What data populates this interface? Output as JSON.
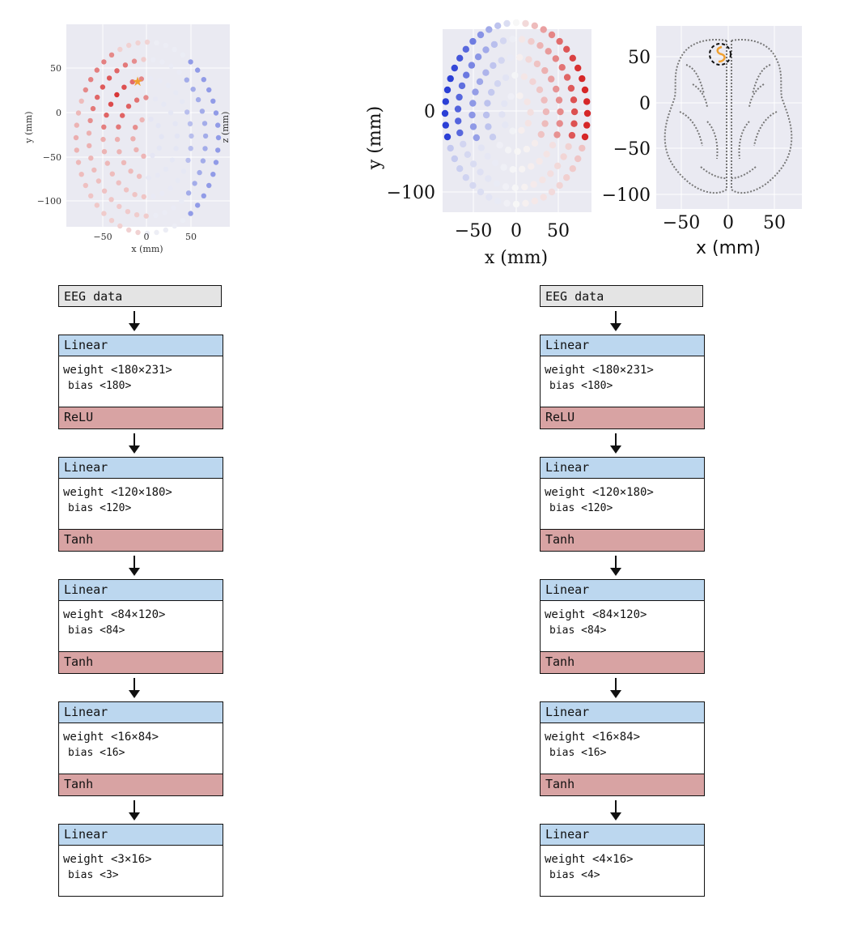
{
  "plots": {
    "plot1": {
      "ylabel": "y (mm)",
      "xlabel": "x (mm)",
      "zlabel": "z (mm)",
      "yticks": [
        "50",
        "0",
        "−50",
        "−100"
      ],
      "xticks": [
        "−50",
        "0",
        "50"
      ]
    },
    "plot2": {
      "ylabel": "y (mm)",
      "xlabel": "x (mm)",
      "yticks": [
        "0",
        "−100"
      ],
      "xticks": [
        "−50",
        "0",
        "50"
      ]
    },
    "plot3": {
      "xlabel": "x (mm)",
      "yticks": [
        "50",
        "0",
        "−50",
        "−100"
      ],
      "xticks": [
        "−50",
        "0",
        "50"
      ]
    }
  },
  "colors": {
    "red": "#d62728",
    "blue": "#2b3fd6",
    "star": "#f0a030",
    "plot_bg": "#eaeaf2",
    "header": "#bcd7ef",
    "activation": "#d8a3a3",
    "input": "#e4e4e4"
  },
  "networks": {
    "left": {
      "input": "EEG data",
      "layers": [
        {
          "name": "Linear",
          "weight": "weight <180×231>",
          "bias": "bias <180>",
          "activation": "ReLU"
        },
        {
          "name": "Linear",
          "weight": "weight <120×180>",
          "bias": "bias <120>",
          "activation": "Tanh"
        },
        {
          "name": "Linear",
          "weight": "weight <84×120>",
          "bias": "bias <84>",
          "activation": "Tanh"
        },
        {
          "name": "Linear",
          "weight": "weight <16×84>",
          "bias": "bias <16>",
          "activation": "Tanh"
        },
        {
          "name": "Linear",
          "weight": "weight <3×16>",
          "bias": "bias <3>"
        }
      ]
    },
    "right": {
      "input": "EEG data",
      "layers": [
        {
          "name": "Linear",
          "weight": "weight <180×231>",
          "bias": "bias <180>",
          "activation": "ReLU"
        },
        {
          "name": "Linear",
          "weight": "weight <120×180>",
          "bias": "bias <120>",
          "activation": "Tanh"
        },
        {
          "name": "Linear",
          "weight": "weight <84×120>",
          "bias": "bias <84>",
          "activation": "Tanh"
        },
        {
          "name": "Linear",
          "weight": "weight <16×84>",
          "bias": "bias <16>",
          "activation": "Tanh"
        },
        {
          "name": "Linear",
          "weight": "weight <4×16>",
          "bias": "bias <4>"
        }
      ]
    }
  }
}
